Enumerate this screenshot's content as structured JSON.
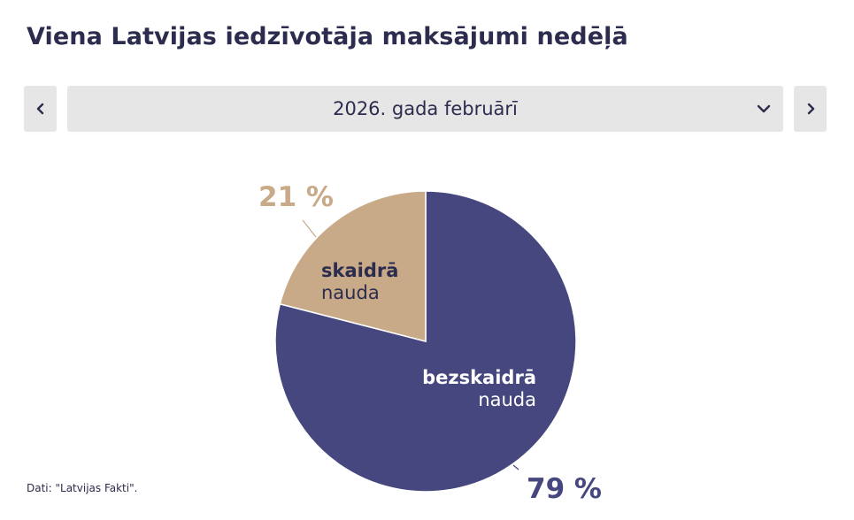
{
  "header": {
    "title": "Viena Latvijas iedzīvotāja maksājumi nedēļā"
  },
  "period_selector": {
    "selected": "2026. gada februārī",
    "prev_icon": "chevron-left-icon",
    "next_icon": "chevron-right-icon",
    "dropdown_icon": "chevron-down-icon"
  },
  "chart_data": {
    "type": "pie",
    "slices": [
      {
        "name_bold": "bezskaidrā",
        "name_rest": "nauda",
        "value": 79,
        "value_label": "79 %",
        "color": "#45477e"
      },
      {
        "name_bold": "skaidrā",
        "name_rest": "nauda",
        "value": 21,
        "value_label": "21 %",
        "color": "#c8aa88"
      }
    ],
    "start": "12 o'clock",
    "direction": "clockwise",
    "legend": "none"
  },
  "footer": {
    "source": "Dati: \"Latvijas Fakti\"."
  },
  "colors": {
    "text": "#2c2c4e",
    "button_bg": "#e6e6e6"
  }
}
